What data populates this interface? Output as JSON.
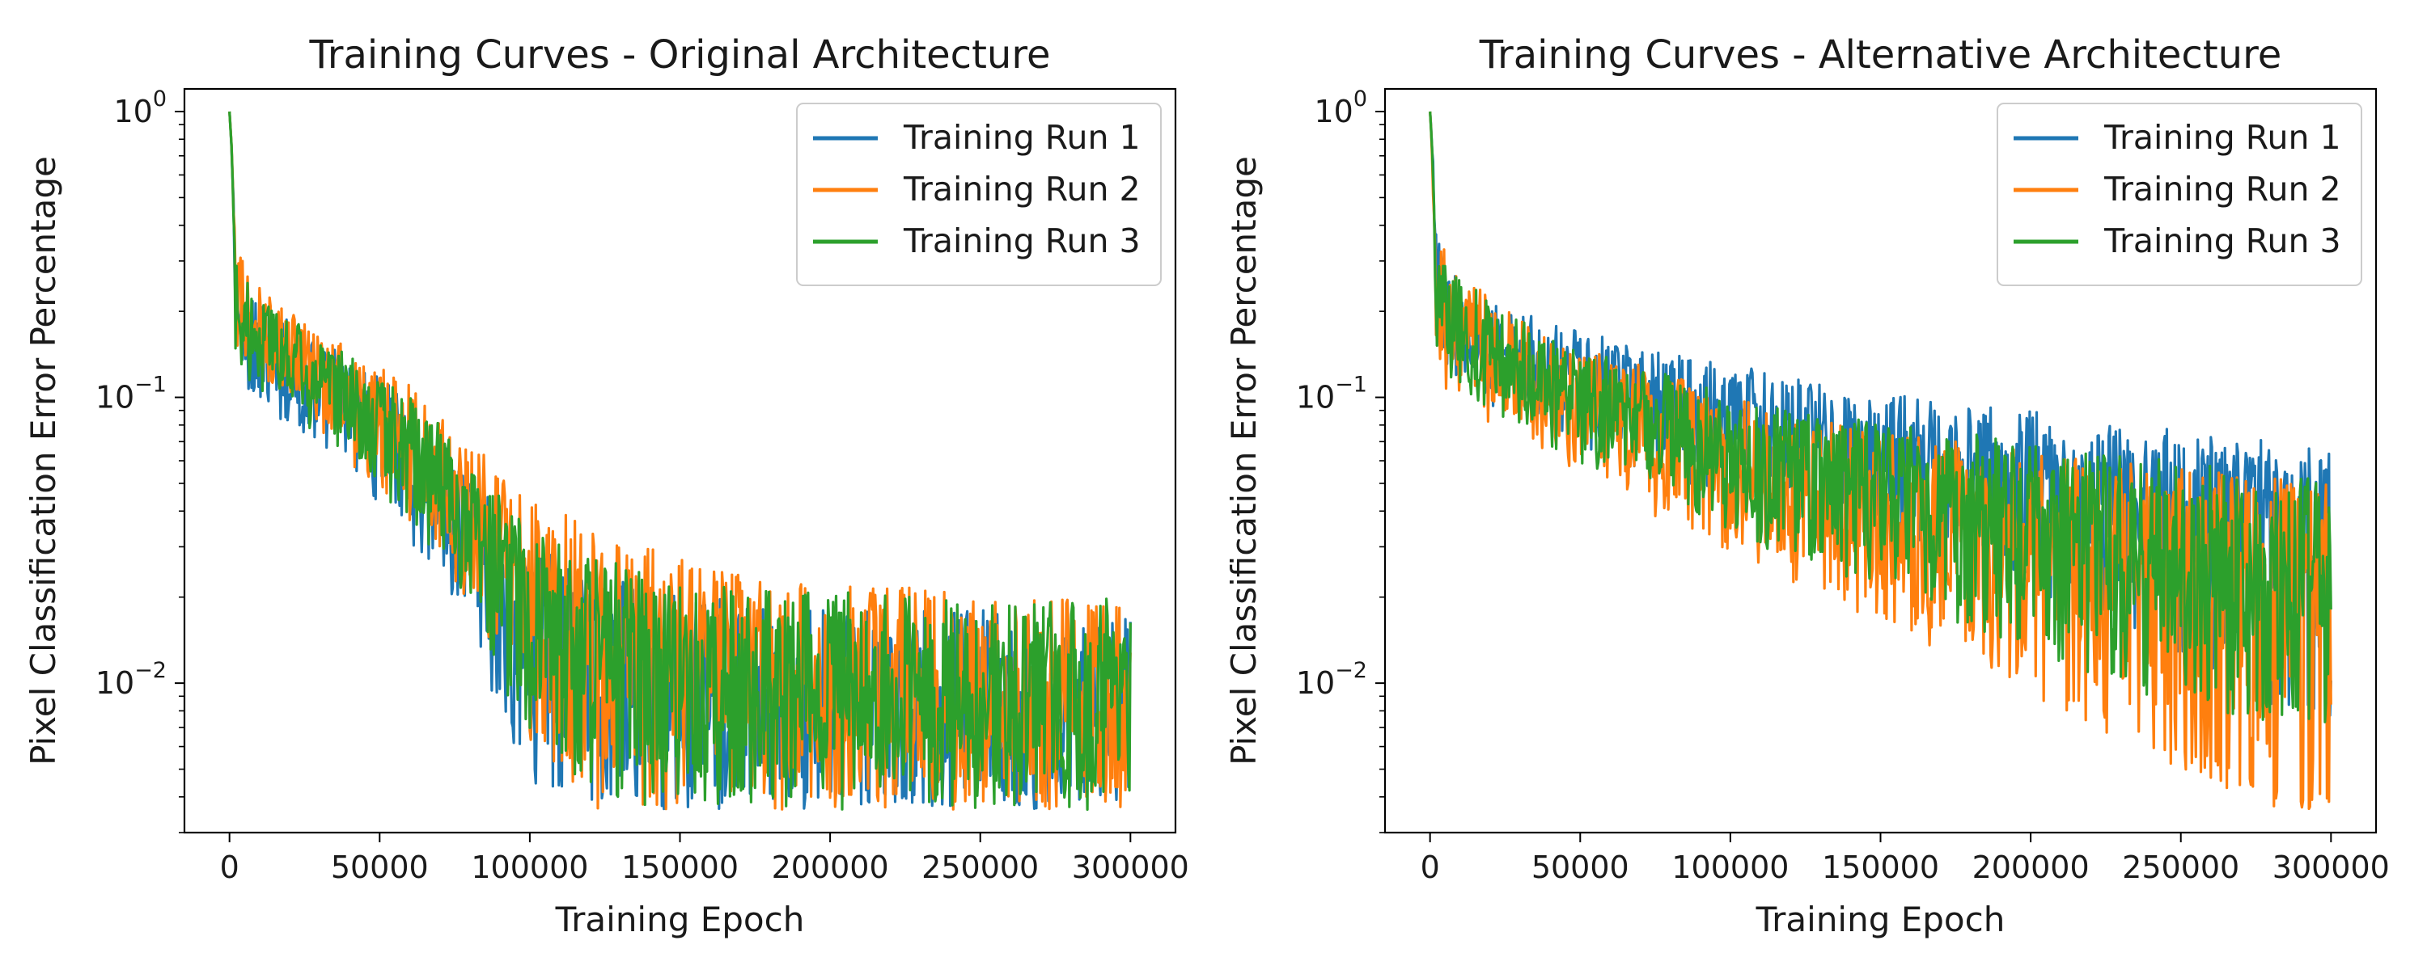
{
  "chart_data": [
    {
      "type": "line",
      "title": "Training Curves - Original Architecture",
      "xlabel": "Training Epoch",
      "ylabel": "Pixel Classification Error Percentage",
      "yscale": "log",
      "xlim": [
        -15000,
        315000
      ],
      "ylim": [
        0.003,
        1.2
      ],
      "xticks": [
        0,
        50000,
        100000,
        150000,
        200000,
        250000,
        300000
      ],
      "xtick_labels": [
        "0",
        "50000",
        "100000",
        "150000",
        "200000",
        "250000",
        "300000"
      ],
      "yticks": [
        1,
        0.1,
        0.01
      ],
      "ytick_labels": [
        {
          "base": "10",
          "exp": "0"
        },
        {
          "base": "10",
          "exp": "−1"
        },
        {
          "base": "10",
          "exp": "−2"
        }
      ],
      "legend_position": "top-right",
      "grid": false,
      "series": [
        {
          "name": "Training Run 1",
          "color": "#1f77b4",
          "x": [
            0,
            2000,
            5000,
            10000,
            20000,
            30000,
            40000,
            50000,
            60000,
            70000,
            80000,
            90000,
            100000,
            120000,
            140000,
            160000,
            180000,
            200000,
            220000,
            240000,
            260000,
            280000,
            300000
          ],
          "mid": [
            1.0,
            0.2,
            0.17,
            0.15,
            0.13,
            0.11,
            0.095,
            0.08,
            0.06,
            0.045,
            0.03,
            0.022,
            0.017,
            0.013,
            0.011,
            0.0095,
            0.009,
            0.0085,
            0.008,
            0.0078,
            0.0076,
            0.0075,
            0.0075
          ],
          "low": [
            1.0,
            0.13,
            0.12,
            0.1,
            0.09,
            0.07,
            0.06,
            0.045,
            0.035,
            0.025,
            0.015,
            0.008,
            0.005,
            0.004,
            0.004,
            0.004,
            0.004,
            0.004,
            0.004,
            0.004,
            0.004,
            0.004,
            0.004
          ],
          "high": [
            1.0,
            0.29,
            0.25,
            0.22,
            0.19,
            0.16,
            0.14,
            0.12,
            0.09,
            0.07,
            0.055,
            0.04,
            0.03,
            0.025,
            0.022,
            0.02,
            0.019,
            0.018,
            0.018,
            0.018,
            0.018,
            0.017,
            0.017
          ]
        },
        {
          "name": "Training Run 2",
          "color": "#ff7f0e",
          "x": [
            0,
            2000,
            5000,
            10000,
            20000,
            30000,
            40000,
            50000,
            60000,
            70000,
            80000,
            90000,
            100000,
            120000,
            140000,
            160000,
            180000,
            200000,
            220000,
            240000,
            260000,
            280000,
            300000
          ],
          "mid": [
            1.0,
            0.21,
            0.18,
            0.16,
            0.14,
            0.12,
            0.1,
            0.085,
            0.07,
            0.055,
            0.04,
            0.03,
            0.022,
            0.016,
            0.013,
            0.011,
            0.01,
            0.0095,
            0.009,
            0.0088,
            0.0085,
            0.0085,
            0.0085
          ],
          "low": [
            1.0,
            0.14,
            0.13,
            0.11,
            0.1,
            0.08,
            0.065,
            0.05,
            0.04,
            0.03,
            0.02,
            0.012,
            0.007,
            0.004,
            0.004,
            0.004,
            0.004,
            0.004,
            0.004,
            0.004,
            0.004,
            0.004,
            0.004
          ],
          "high": [
            1.0,
            0.33,
            0.3,
            0.25,
            0.2,
            0.17,
            0.15,
            0.13,
            0.11,
            0.09,
            0.07,
            0.055,
            0.045,
            0.035,
            0.03,
            0.025,
            0.023,
            0.022,
            0.022,
            0.021,
            0.02,
            0.02,
            0.019
          ]
        },
        {
          "name": "Training Run 3",
          "color": "#2ca02c",
          "x": [
            0,
            2000,
            5000,
            10000,
            20000,
            30000,
            40000,
            50000,
            60000,
            70000,
            80000,
            90000,
            100000,
            120000,
            140000,
            160000,
            180000,
            200000,
            220000,
            240000,
            260000,
            280000,
            300000
          ],
          "mid": [
            1.0,
            0.2,
            0.18,
            0.16,
            0.14,
            0.12,
            0.1,
            0.085,
            0.068,
            0.05,
            0.036,
            0.027,
            0.02,
            0.015,
            0.012,
            0.01,
            0.0095,
            0.009,
            0.0085,
            0.0083,
            0.008,
            0.008,
            0.008
          ],
          "low": [
            1.0,
            0.14,
            0.13,
            0.11,
            0.1,
            0.08,
            0.065,
            0.05,
            0.04,
            0.03,
            0.02,
            0.011,
            0.007,
            0.0045,
            0.004,
            0.004,
            0.004,
            0.004,
            0.004,
            0.004,
            0.004,
            0.004,
            0.004
          ],
          "high": [
            1.0,
            0.3,
            0.27,
            0.23,
            0.19,
            0.16,
            0.14,
            0.12,
            0.1,
            0.08,
            0.06,
            0.045,
            0.035,
            0.028,
            0.024,
            0.022,
            0.021,
            0.021,
            0.021,
            0.02,
            0.02,
            0.02,
            0.02
          ]
        }
      ]
    },
    {
      "type": "line",
      "title": "Training Curves - Alternative Architecture",
      "xlabel": "Training Epoch",
      "ylabel": "Pixel Classification Error Percentage",
      "yscale": "log",
      "xlim": [
        -15000,
        315000
      ],
      "ylim": [
        0.003,
        1.2
      ],
      "xticks": [
        0,
        50000,
        100000,
        150000,
        200000,
        250000,
        300000
      ],
      "xtick_labels": [
        "0",
        "50000",
        "100000",
        "150000",
        "200000",
        "250000",
        "300000"
      ],
      "yticks": [
        1,
        0.1,
        0.01
      ],
      "ytick_labels": [
        {
          "base": "10",
          "exp": "0"
        },
        {
          "base": "10",
          "exp": "−1"
        },
        {
          "base": "10",
          "exp": "−2"
        }
      ],
      "legend_position": "top-right",
      "grid": false,
      "series": [
        {
          "name": "Training Run 1",
          "color": "#1f77b4",
          "x": [
            0,
            2000,
            5000,
            10000,
            20000,
            30000,
            40000,
            50000,
            60000,
            70000,
            80000,
            90000,
            100000,
            120000,
            140000,
            160000,
            180000,
            200000,
            220000,
            240000,
            260000,
            280000,
            300000
          ],
          "mid": [
            1.0,
            0.22,
            0.2,
            0.17,
            0.15,
            0.14,
            0.13,
            0.12,
            0.11,
            0.1,
            0.095,
            0.09,
            0.085,
            0.075,
            0.068,
            0.062,
            0.056,
            0.052,
            0.048,
            0.045,
            0.043,
            0.04,
            0.038
          ],
          "low": [
            1.0,
            0.14,
            0.13,
            0.12,
            0.1,
            0.095,
            0.085,
            0.075,
            0.068,
            0.062,
            0.057,
            0.053,
            0.05,
            0.043,
            0.037,
            0.032,
            0.027,
            0.022,
            0.018,
            0.015,
            0.011,
            0.009,
            0.008
          ],
          "high": [
            1.0,
            0.42,
            0.3,
            0.25,
            0.22,
            0.2,
            0.18,
            0.17,
            0.16,
            0.15,
            0.14,
            0.14,
            0.13,
            0.12,
            0.11,
            0.1,
            0.095,
            0.09,
            0.085,
            0.08,
            0.075,
            0.07,
            0.065
          ]
        },
        {
          "name": "Training Run 2",
          "color": "#ff7f0e",
          "x": [
            0,
            2000,
            5000,
            10000,
            20000,
            30000,
            40000,
            50000,
            60000,
            70000,
            80000,
            90000,
            100000,
            120000,
            140000,
            160000,
            180000,
            200000,
            220000,
            240000,
            260000,
            280000,
            300000
          ],
          "mid": [
            1.0,
            0.21,
            0.19,
            0.16,
            0.13,
            0.115,
            0.1,
            0.09,
            0.08,
            0.072,
            0.065,
            0.06,
            0.055,
            0.048,
            0.042,
            0.037,
            0.033,
            0.03,
            0.028,
            0.026,
            0.025,
            0.024,
            0.023
          ],
          "low": [
            1.0,
            0.13,
            0.12,
            0.11,
            0.09,
            0.08,
            0.07,
            0.06,
            0.052,
            0.045,
            0.04,
            0.035,
            0.031,
            0.025,
            0.02,
            0.016,
            0.013,
            0.01,
            0.008,
            0.006,
            0.005,
            0.004,
            0.004
          ],
          "high": [
            1.0,
            0.36,
            0.33,
            0.28,
            0.22,
            0.19,
            0.17,
            0.15,
            0.14,
            0.13,
            0.12,
            0.11,
            0.1,
            0.09,
            0.08,
            0.075,
            0.07,
            0.065,
            0.06,
            0.058,
            0.055,
            0.052,
            0.05
          ]
        },
        {
          "name": "Training Run 3",
          "color": "#2ca02c",
          "x": [
            0,
            2000,
            5000,
            10000,
            20000,
            30000,
            40000,
            50000,
            60000,
            70000,
            80000,
            90000,
            100000,
            120000,
            140000,
            160000,
            180000,
            200000,
            220000,
            240000,
            260000,
            280000,
            300000
          ],
          "mid": [
            1.0,
            0.21,
            0.19,
            0.16,
            0.14,
            0.12,
            0.11,
            0.1,
            0.09,
            0.08,
            0.075,
            0.07,
            0.065,
            0.057,
            0.05,
            0.045,
            0.04,
            0.037,
            0.034,
            0.031,
            0.029,
            0.027,
            0.026
          ],
          "low": [
            1.0,
            0.14,
            0.13,
            0.12,
            0.1,
            0.085,
            0.075,
            0.065,
            0.057,
            0.05,
            0.045,
            0.04,
            0.037,
            0.03,
            0.025,
            0.02,
            0.017,
            0.014,
            0.012,
            0.01,
            0.009,
            0.008,
            0.008
          ],
          "high": [
            1.0,
            0.34,
            0.3,
            0.26,
            0.22,
            0.19,
            0.17,
            0.15,
            0.14,
            0.13,
            0.12,
            0.11,
            0.1,
            0.09,
            0.085,
            0.08,
            0.075,
            0.07,
            0.066,
            0.062,
            0.058,
            0.055,
            0.052
          ]
        }
      ]
    }
  ]
}
